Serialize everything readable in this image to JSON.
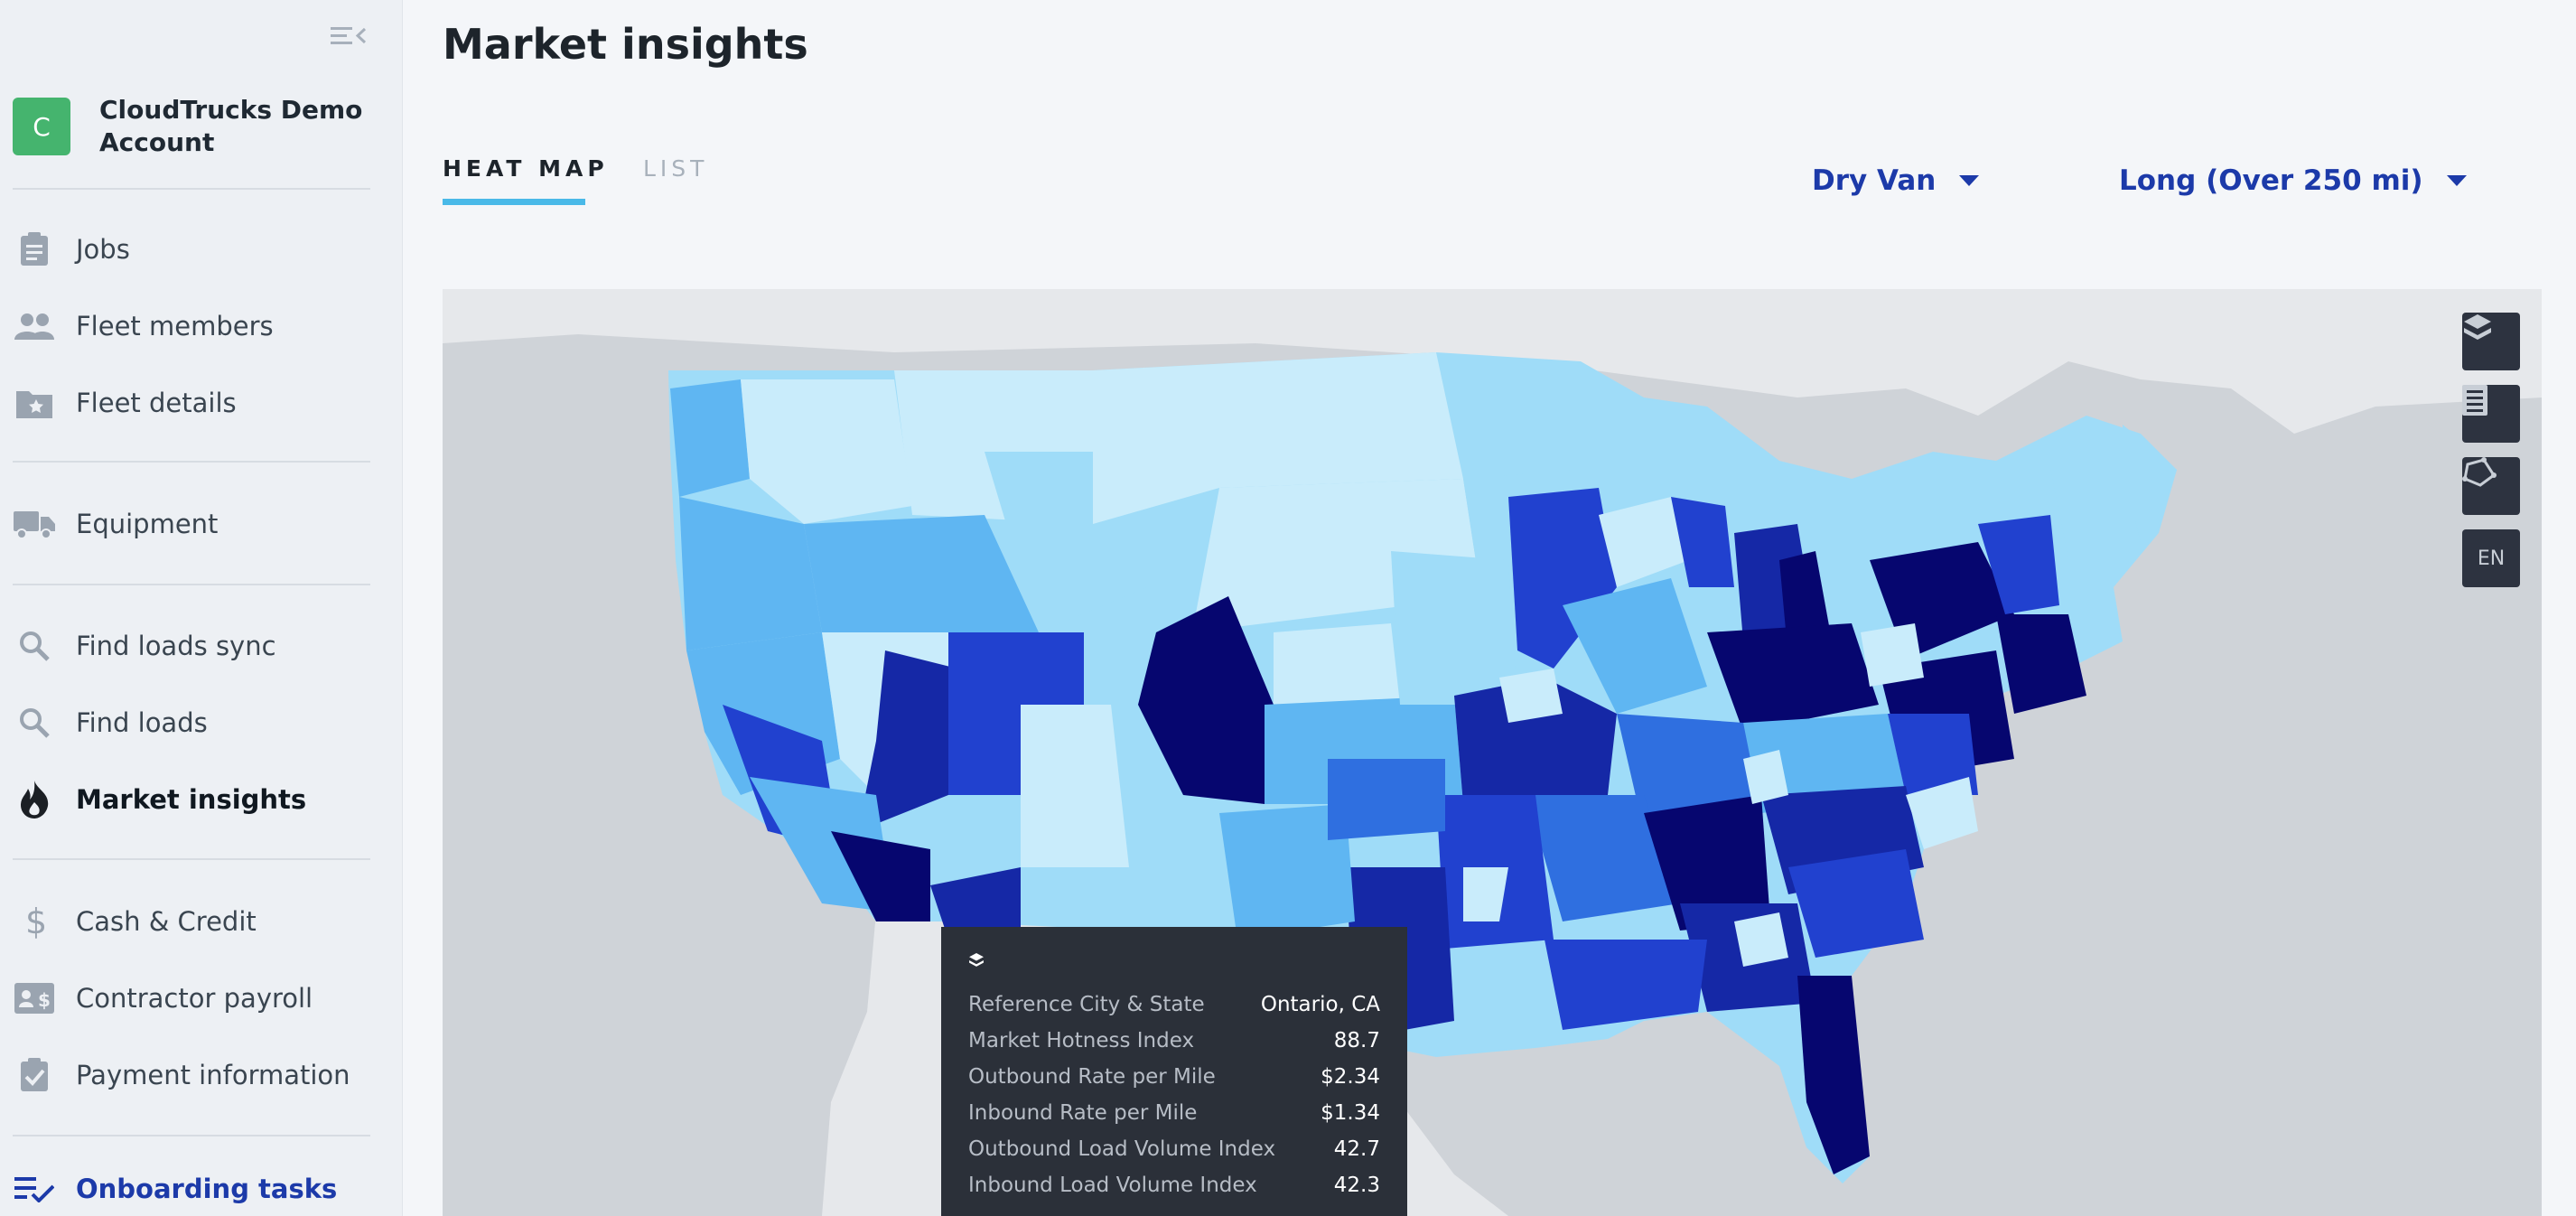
{
  "sidebar": {
    "account": {
      "initial": "C",
      "name": "CloudTrucks Demo Account"
    },
    "items": [
      {
        "label": "Jobs",
        "icon": "clipboard-icon"
      },
      {
        "label": "Fleet members",
        "icon": "people-icon"
      },
      {
        "label": "Fleet details",
        "icon": "folder-star-icon"
      },
      {
        "label": "Equipment",
        "icon": "truck-icon"
      },
      {
        "label": "Find loads sync",
        "icon": "search-icon"
      },
      {
        "label": "Find loads",
        "icon": "search-icon"
      },
      {
        "label": "Market insights",
        "icon": "flame-icon"
      },
      {
        "label": "Cash & Credit",
        "icon": "dollar-icon"
      },
      {
        "label": "Contractor payroll",
        "icon": "id-card-dollar-icon"
      },
      {
        "label": "Payment information",
        "icon": "clipboard-check-icon"
      },
      {
        "label": "Onboarding tasks",
        "icon": "checklist-icon"
      }
    ],
    "active_item": "Market insights"
  },
  "page": {
    "title": "Market insights",
    "tabs": [
      {
        "label": "HEAT MAP",
        "selected": true
      },
      {
        "label": "LIST",
        "selected": false
      }
    ],
    "filters": {
      "vehicle": "Dry Van",
      "distance": "Long (Over 250 mi)"
    }
  },
  "map": {
    "controls": [
      {
        "name": "layer-icon"
      },
      {
        "name": "legend-icon"
      },
      {
        "name": "draw-polygon-icon"
      },
      {
        "name": "language",
        "label": "EN"
      }
    ],
    "colors": {
      "ocean": "#cfd3d8",
      "land": "#e6e8eb",
      "scale": [
        "#c9ecfb",
        "#9fdcf8",
        "#5fb6f2",
        "#2f6fe0",
        "#2141cf",
        "#1528a6",
        "#06066f"
      ]
    },
    "tooltip": {
      "rows": [
        {
          "label": "Reference City & State",
          "value": "Ontario, CA"
        },
        {
          "label": "Market Hotness Index",
          "value": "88.7"
        },
        {
          "label": "Outbound Rate per Mile",
          "value": "$2.34"
        },
        {
          "label": "Inbound Rate per Mile",
          "value": "$1.34"
        },
        {
          "label": "Outbound Load Volume Index",
          "value": "42.7"
        },
        {
          "label": "Inbound Load Volume Index",
          "value": "42.3"
        }
      ]
    }
  }
}
